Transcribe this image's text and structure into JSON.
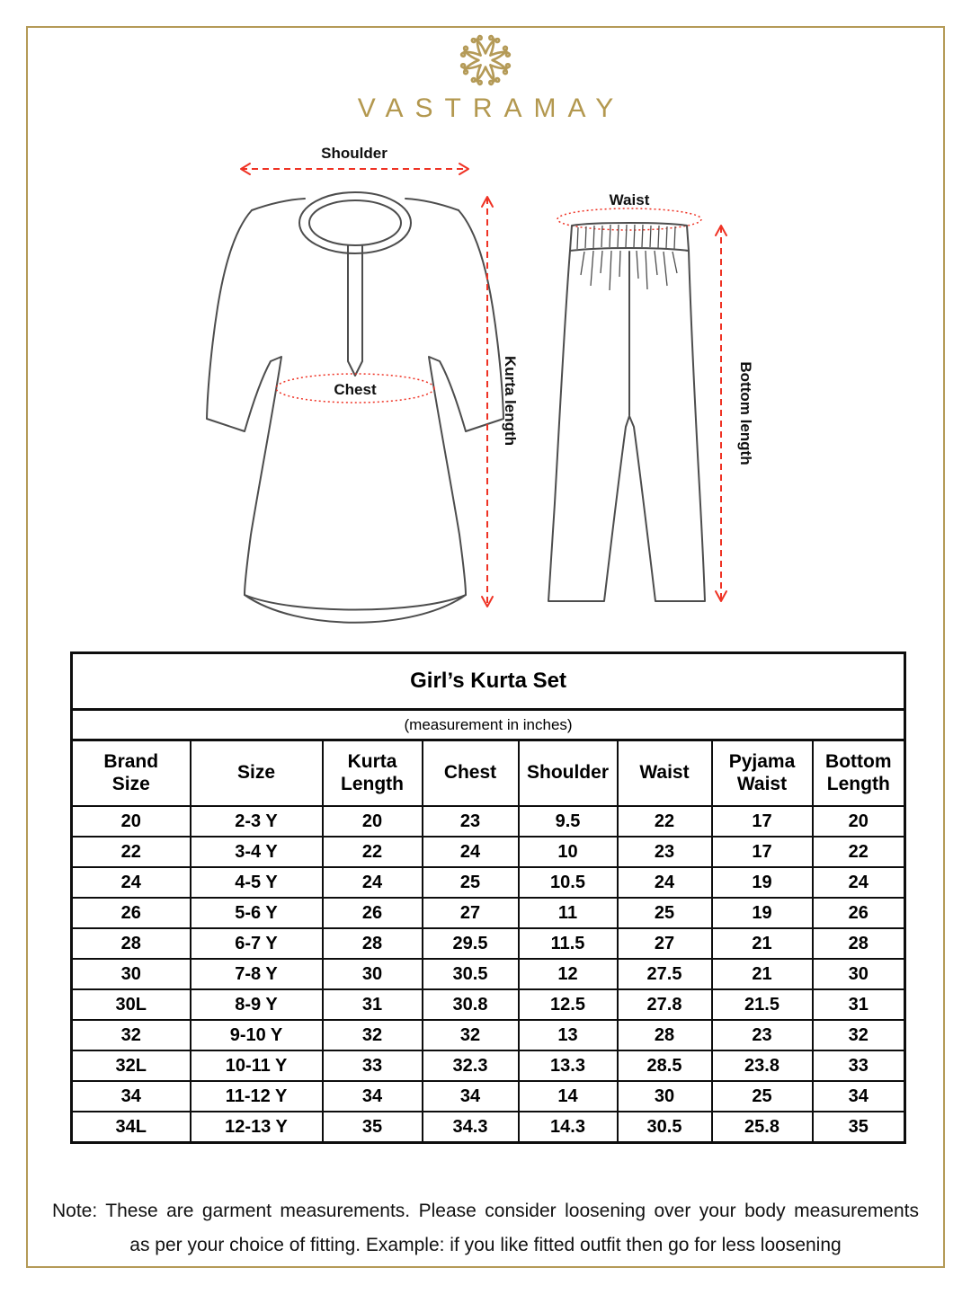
{
  "brand": {
    "name": "VASTRAMAY",
    "gold_color": "#b49a57"
  },
  "diagram": {
    "arrow_color": "#ef3224",
    "kurta": {
      "shoulder_label": "Shoulder",
      "chest_label": "Chest",
      "length_label": "Kurta length"
    },
    "pyjama": {
      "waist_label": "Waist",
      "length_label": "Bottom length"
    }
  },
  "table": {
    "title": "Girl’s Kurta Set",
    "subtitle": "(measurement in inches)",
    "columns": [
      "Brand\nSize",
      "Size",
      "Kurta\nLength",
      "Chest",
      "Shoulder",
      "Waist",
      "Pyjama\nWaist",
      "Bottom\nLength"
    ],
    "rows": [
      [
        "20",
        "2-3 Y",
        "20",
        "23",
        "9.5",
        "22",
        "17",
        "20"
      ],
      [
        "22",
        "3-4 Y",
        "22",
        "24",
        "10",
        "23",
        "17",
        "22"
      ],
      [
        "24",
        "4-5 Y",
        "24",
        "25",
        "10.5",
        "24",
        "19",
        "24"
      ],
      [
        "26",
        "5-6 Y",
        "26",
        "27",
        "11",
        "25",
        "19",
        "26"
      ],
      [
        "28",
        "6-7 Y",
        "28",
        "29.5",
        "11.5",
        "27",
        "21",
        "28"
      ],
      [
        "30",
        "7-8 Y",
        "30",
        "30.5",
        "12",
        "27.5",
        "21",
        "30"
      ],
      [
        "30L",
        "8-9 Y",
        "31",
        "30.8",
        "12.5",
        "27.8",
        "21.5",
        "31"
      ],
      [
        "32",
        "9-10 Y",
        "32",
        "32",
        "13",
        "28",
        "23",
        "32"
      ],
      [
        "32L",
        "10-11 Y",
        "33",
        "32.3",
        "13.3",
        "28.5",
        "23.8",
        "33"
      ],
      [
        "34",
        "11-12 Y",
        "34",
        "34",
        "14",
        "30",
        "25",
        "34"
      ],
      [
        "34L",
        "12-13 Y",
        "35",
        "34.3",
        "14.3",
        "30.5",
        "25.8",
        "35"
      ]
    ]
  },
  "note": {
    "lines": [
      "Note: These are garment measurements. Please consider loosening over your body measurements",
      "as per your choice of fitting. Example: if you like fitted outfit then go for less loosening"
    ]
  }
}
